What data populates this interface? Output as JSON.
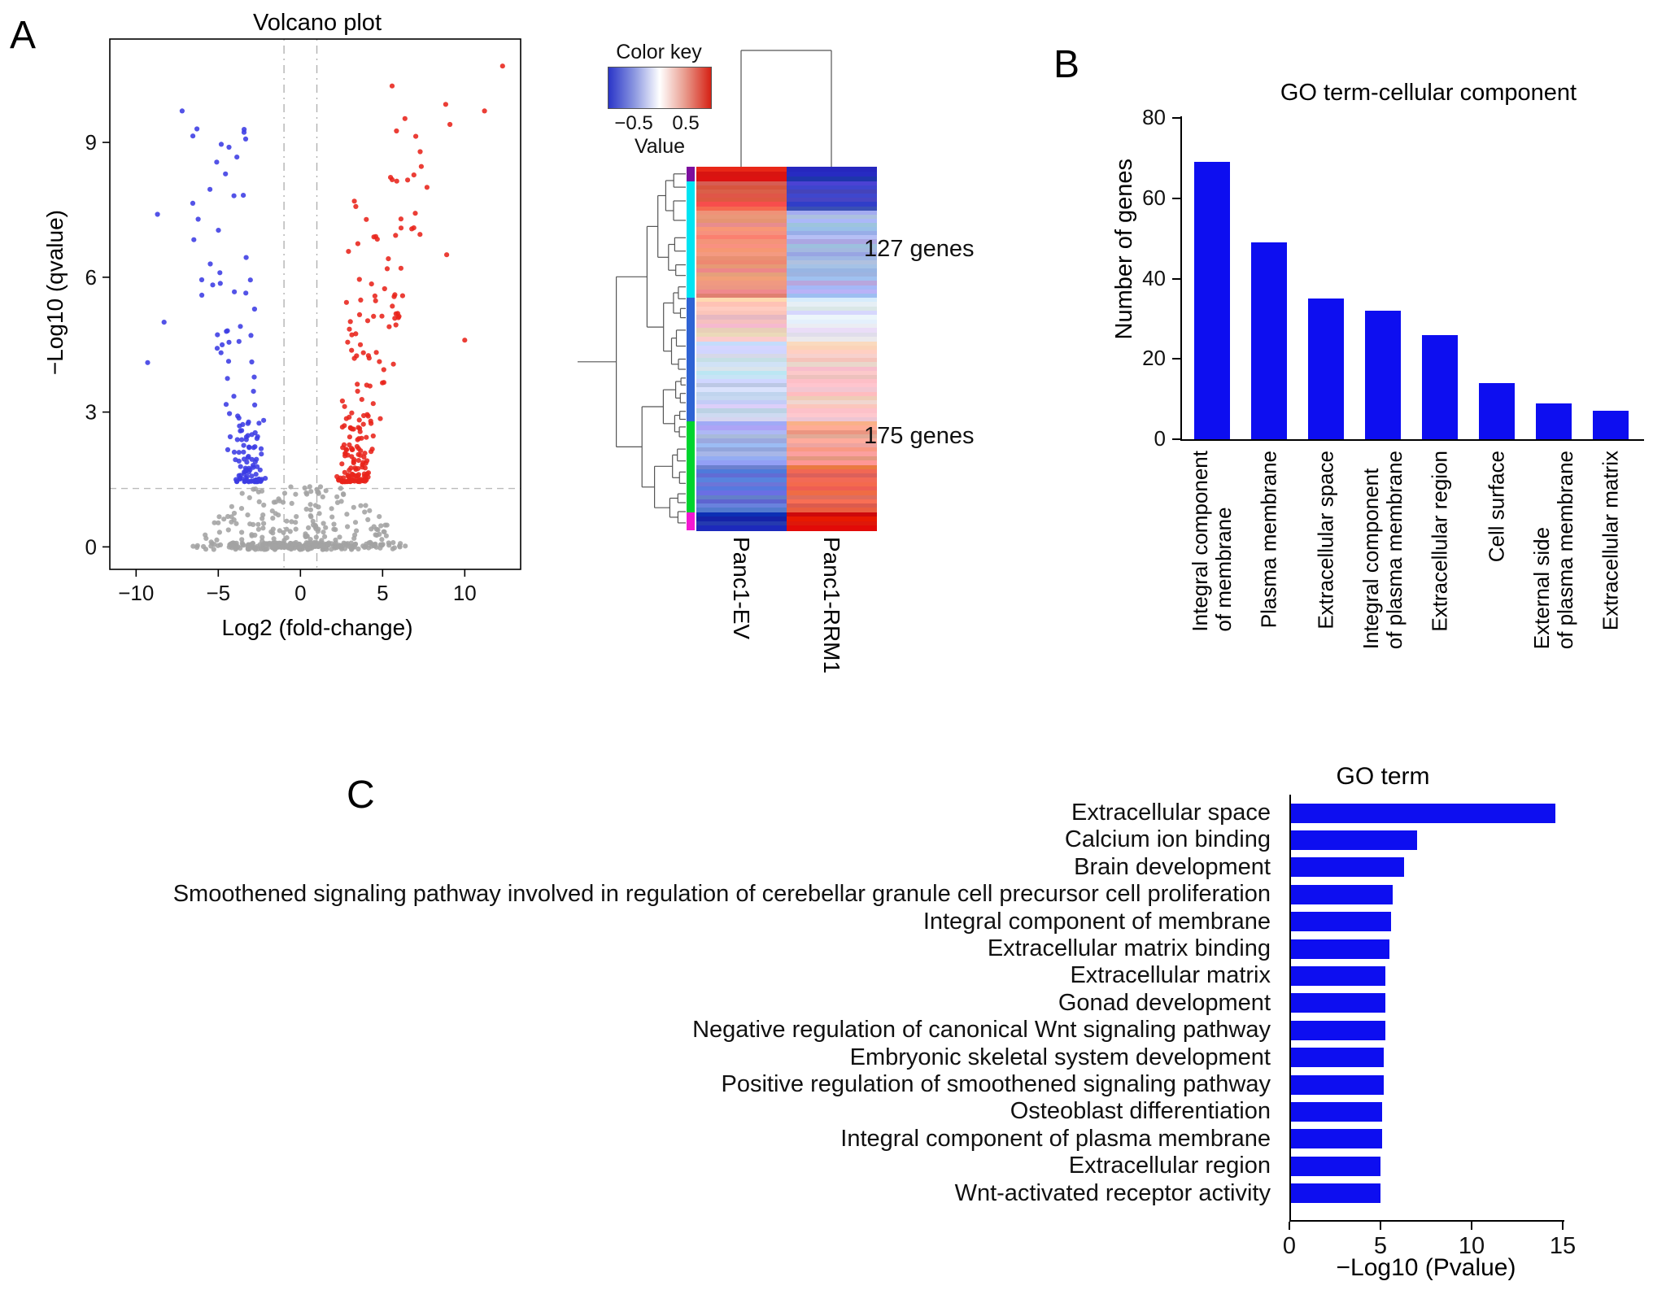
{
  "panels": {
    "a": "A",
    "b": "B",
    "c": "C"
  },
  "chart_data": [
    {
      "id": "volcano",
      "type": "scatter",
      "title": "Volcano plot",
      "xlabel": "Log2 (fold-change)",
      "ylabel": "−Log10 (qvalue)",
      "xlim": [
        -11.6,
        13.4
      ],
      "ylim": [
        -0.5,
        11.3
      ],
      "xticks": [
        -10,
        -5,
        0,
        5,
        10
      ],
      "yticks": [
        0,
        3,
        6,
        9
      ],
      "thresholds": {
        "x": [
          -1,
          1
        ],
        "y": 1.3
      },
      "seed": 1337,
      "series": [
        {
          "name": "not-significant",
          "kind": "ns",
          "color": "#a3a3a3",
          "n": 400
        },
        {
          "name": "downregulated",
          "kind": "down",
          "color": "#3b3be4",
          "n": 135,
          "outliers": [
            [
              -7.2,
              9.7
            ],
            [
              -6.3,
              9.3
            ],
            [
              -8.7,
              7.4
            ],
            [
              -4.9,
              6.1
            ],
            [
              -8.3,
              5.0
            ],
            [
              -9.3,
              4.1
            ],
            [
              -6.0,
              5.6
            ]
          ]
        },
        {
          "name": "upregulated",
          "kind": "up",
          "color": "#e8231a",
          "n": 195,
          "outliers": [
            [
              12.3,
              10.7
            ],
            [
              11.2,
              9.7
            ],
            [
              9.1,
              9.4
            ],
            [
              7.7,
              8.0
            ],
            [
              6.9,
              7.1
            ],
            [
              8.9,
              6.5
            ],
            [
              10.0,
              4.6
            ]
          ]
        }
      ]
    },
    {
      "id": "expression-heatmap",
      "type": "heatmap",
      "color_key": {
        "title": "Color key",
        "ticks": [
          "−0.5",
          "0.5"
        ],
        "value_label": "Value"
      },
      "columns": [
        "Panc1-EV",
        "Panc1-RRM1"
      ],
      "annotations": [
        "127 genes",
        "175 genes"
      ],
      "row_segments": [
        {
          "frac": 0.04,
          "cols": [
            "#dd2012",
            "#2026b8"
          ]
        },
        {
          "frac": 0.08,
          "cols": [
            "#e85a42",
            "#3d49c6"
          ]
        },
        {
          "frac": 0.24,
          "cols": [
            "#f0907e",
            "#a8b6ea"
          ]
        },
        {
          "frac": 0.12,
          "cols": [
            "#f6c9c0",
            "#dfe5f7"
          ]
        },
        {
          "frac": 0.22,
          "cols": [
            "#ccd7f4",
            "#f5cdc5"
          ]
        },
        {
          "frac": 0.12,
          "cols": [
            "#9db0e8",
            "#f0a18f"
          ]
        },
        {
          "frac": 0.13,
          "cols": [
            "#5d74d6",
            "#ea6a4e"
          ]
        },
        {
          "frac": 0.05,
          "cols": [
            "#1d2cb4",
            "#d81505"
          ]
        }
      ],
      "side_segments": [
        {
          "frac": 0.04,
          "color": "#7c0e9e"
        },
        {
          "frac": 0.32,
          "color": "#00e4f2"
        },
        {
          "frac": 0.34,
          "color": "#2f63d4"
        },
        {
          "frac": 0.25,
          "color": "#00d42e"
        },
        {
          "frac": 0.05,
          "color": "#f318d2"
        }
      ]
    },
    {
      "id": "go-cellular-component",
      "type": "bar",
      "title": "GO term-cellular component",
      "ylabel": "Number of genes",
      "ylim": [
        0,
        80
      ],
      "yticks": [
        0,
        20,
        40,
        60,
        80
      ],
      "bar_color": "#0d0ef0",
      "categories": [
        "Integral component\nof membrane",
        "Plasma membrane",
        "Extracellular space",
        "Integral component\nof plasma membrane",
        "Extracellular region",
        "Cell surface",
        "External side\nof plasma membrane",
        "Extracellular matrix"
      ],
      "values": [
        69,
        49,
        35,
        32,
        26,
        14,
        9,
        7
      ]
    },
    {
      "id": "go-term",
      "type": "bar-horizontal",
      "title": "GO term",
      "xlabel": "−Log10 (Pvalue)",
      "xlim": [
        0,
        15
      ],
      "xticks": [
        0,
        5,
        10,
        15
      ],
      "bar_color": "#0d0ef0",
      "categories": [
        "Extracellular space",
        "Calcium ion binding",
        "Brain development",
        "Smoothened signaling pathway involved in regulation of cerebellar granule cell precursor cell proliferation",
        "Integral component of membrane",
        "Extracellular matrix binding",
        "Extracellular matrix",
        "Gonad development",
        "Negative regulation of canonical Wnt signaling pathway",
        "Embryonic skeletal system development",
        "Positive regulation of smoothened signaling pathway",
        "Osteoblast differentiation",
        "Integral component of plasma membrane",
        "Extracellular region",
        "Wnt-activated receptor activity"
      ],
      "values": [
        14.5,
        6.9,
        6.2,
        5.6,
        5.5,
        5.4,
        5.2,
        5.2,
        5.2,
        5.1,
        5.1,
        5.0,
        5.0,
        4.9,
        4.9
      ]
    }
  ]
}
